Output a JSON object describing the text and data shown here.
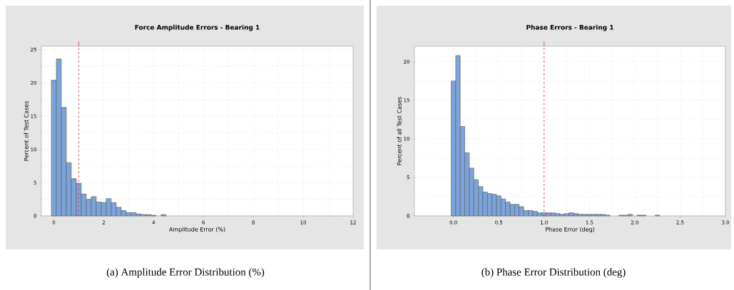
{
  "chart_data": [
    {
      "type": "histogram",
      "title": "Force Amplitude Errors - Bearing 1",
      "xlabel": "Amplitude Error (%)",
      "ylabel": "Percent of Test Cases",
      "bins": [
        -0.1,
        0.1,
        0.3,
        0.5,
        0.7,
        0.9,
        1.1,
        1.3,
        1.5,
        1.7,
        1.9,
        2.1,
        2.3,
        2.5,
        2.7,
        2.9,
        3.1,
        3.3,
        3.5,
        3.7,
        3.9,
        4.1,
        4.3,
        4.5
      ],
      "values": [
        20.4,
        23.6,
        16.3,
        8.0,
        5.6,
        4.9,
        3.3,
        2.5,
        2.9,
        2.1,
        2.0,
        2.6,
        2.0,
        1.3,
        0.8,
        0.5,
        0.5,
        0.3,
        0.2,
        0.2,
        0.1,
        null,
        0.2
      ],
      "color": "#7ba4db",
      "xlim": [
        -0.5,
        12
      ],
      "ylim": [
        0,
        25.5
      ],
      "xticks": [
        0,
        2,
        4,
        6,
        8,
        10,
        12
      ],
      "yticks": [
        0,
        5,
        10,
        15,
        20,
        25
      ],
      "grid": true,
      "ref_lines": [
        {
          "axis": "x",
          "value": 1,
          "label": "1",
          "color": "#d0393e",
          "line_style": "dashed"
        }
      ],
      "annotations": [
        "(a) Amplitude Error Distribution (%)"
      ]
    },
    {
      "type": "histogram",
      "title": "Phase Errors - Bearing 1",
      "xlabel": "Phase Error (deg)",
      "ylabel": "Percent of all Test Cases",
      "bins": [
        -0.025,
        0.025,
        0.075,
        0.125,
        0.175,
        0.225,
        0.275,
        0.325,
        0.375,
        0.425,
        0.475,
        0.525,
        0.575,
        0.625,
        0.675,
        0.725,
        0.775,
        0.825,
        0.875,
        0.925,
        0.975,
        1.025,
        1.075,
        1.125,
        1.175,
        1.225,
        1.275,
        1.325,
        1.375,
        1.425,
        1.475,
        1.525,
        1.575,
        1.625,
        1.675,
        1.725,
        1.775,
        1.825,
        1.875,
        1.925,
        1.975,
        2.025,
        2.075,
        2.125,
        2.175,
        2.225,
        2.275
      ],
      "values": [
        17.5,
        20.8,
        11.6,
        8.2,
        6.2,
        4.7,
        3.8,
        3.1,
        2.9,
        2.8,
        2.6,
        2.2,
        1.8,
        1.5,
        1.5,
        1.2,
        0.7,
        0.7,
        0.6,
        0.4,
        0.4,
        0.4,
        0.4,
        0.3,
        0.2,
        0.3,
        0.4,
        0.3,
        0.2,
        0.2,
        0.2,
        0.2,
        0.2,
        0.2,
        0.1,
        null,
        null,
        0.1,
        0.1,
        0.2,
        null,
        0.1,
        0.1,
        null,
        null,
        0.1
      ],
      "color": "#7ba4db",
      "xlim": [
        -0.43,
        3.0
      ],
      "ylim": [
        0,
        22
      ],
      "xticks": [
        {
          "value": 0,
          "label": "0.0"
        },
        {
          "value": 0.5,
          "label": "0.5"
        },
        {
          "value": 1,
          "label": "1.0"
        },
        {
          "value": 1.5,
          "label": "1.5"
        },
        {
          "value": 2,
          "label": "2.0"
        },
        {
          "value": 2.5,
          "label": "2.5"
        },
        {
          "value": 3,
          "label": "3.0"
        }
      ],
      "yticks": [
        0,
        5,
        10,
        15,
        20
      ],
      "grid": true,
      "ref_lines": [
        {
          "axis": "x",
          "value": 1,
          "label": "1",
          "color": "#d0393e",
          "line_style": "dashed"
        }
      ],
      "annotations": [
        "(b) Phase Error Distribution (deg)"
      ]
    }
  ]
}
